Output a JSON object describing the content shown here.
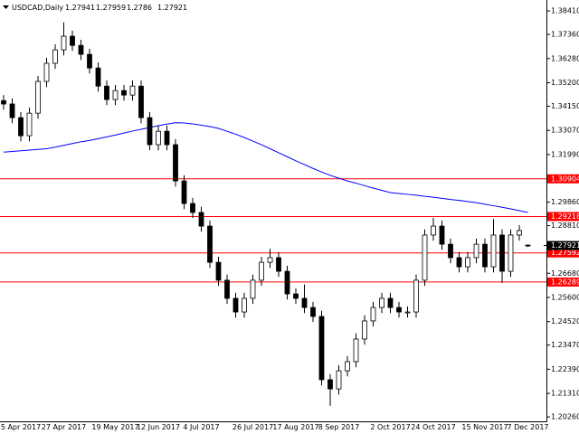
{
  "chart_data": {
    "type": "candlestick",
    "title": "USDCAD,Daily",
    "categories": [
      null,
      null,
      "5 Apr 2017",
      null,
      null,
      null,
      null,
      "27 Apr 2017",
      null,
      null,
      null,
      null,
      null,
      "19 May 2017",
      null,
      null,
      null,
      null,
      "12 Jun 2017",
      null,
      null,
      null,
      null,
      "4 Jul 2017",
      null,
      null,
      null,
      null,
      null,
      "26 Jul 2017",
      null,
      null,
      null,
      null,
      "17 Aug 2017",
      null,
      null,
      null,
      null,
      "8 Sep 2017",
      null,
      null,
      null,
      null,
      null,
      "2 Oct 2017",
      null,
      null,
      null,
      null,
      "24 Oct 2017",
      null,
      null,
      null,
      null,
      null,
      "15 Nov 2017",
      null,
      null,
      null,
      null,
      "7 Dec 2017"
    ],
    "open": [
      1.344,
      1.3425,
      1.3364,
      1.3283,
      1.3384,
      1.3526,
      1.3607,
      1.3667,
      1.3728,
      1.3687,
      1.3647,
      1.3586,
      1.3505,
      1.3445,
      1.3485,
      1.3465,
      1.3505,
      1.3364,
      1.3243,
      1.3303,
      1.3243,
      1.3081,
      1.298,
      1.294,
      1.2879,
      1.2717,
      1.2637,
      1.2556,
      1.2495,
      1.2556,
      1.2637,
      1.2717,
      1.2738,
      1.2677,
      1.2576,
      1.2556,
      1.2515,
      1.2475,
      1.2192,
      1.2151,
      1.2232,
      1.2273,
      1.2374,
      1.2455,
      1.2515,
      1.2556,
      1.2515,
      1.2495,
      1.2495,
      1.2637,
      1.2839,
      1.2879,
      1.2798,
      1.2738,
      1.2697,
      1.2738,
      1.2798,
      1.2697,
      1.2839,
      1.2677,
      1.2839,
      1.27941
    ],
    "high": [
      1.3465,
      1.345,
      1.3389,
      1.3409,
      1.3551,
      1.3632,
      1.3692,
      1.379,
      1.3753,
      1.3712,
      1.3672,
      1.3611,
      1.353,
      1.351,
      1.351,
      1.353,
      1.353,
      1.3389,
      1.3328,
      1.3328,
      1.3268,
      1.3106,
      1.3005,
      1.2965,
      1.2904,
      1.2742,
      1.2662,
      1.2581,
      1.2581,
      1.2662,
      1.2742,
      1.2777,
      1.2763,
      1.2702,
      1.2601,
      1.2618,
      1.254,
      1.25,
      1.2217,
      1.2257,
      1.2298,
      1.2399,
      1.248,
      1.254,
      1.2581,
      1.2581,
      1.254,
      1.252,
      1.2662,
      1.2864,
      1.2916,
      1.2904,
      1.2823,
      1.2763,
      1.2763,
      1.2823,
      1.2823,
      1.291,
      1.2864,
      1.2864,
      1.2884,
      1.27959
    ],
    "low": [
      1.34,
      1.3339,
      1.3258,
      1.3258,
      1.3359,
      1.3501,
      1.3582,
      1.3642,
      1.3662,
      1.3622,
      1.3561,
      1.348,
      1.342,
      1.342,
      1.344,
      1.344,
      1.3339,
      1.3218,
      1.3218,
      1.3218,
      1.3056,
      1.2955,
      1.2915,
      1.2854,
      1.2692,
      1.2612,
      1.2531,
      1.247,
      1.247,
      1.2531,
      1.2612,
      1.2692,
      1.2652,
      1.2551,
      1.2531,
      1.249,
      1.245,
      1.2167,
      1.2075,
      1.2126,
      1.2207,
      1.2248,
      1.2349,
      1.243,
      1.249,
      1.249,
      1.247,
      1.247,
      1.247,
      1.2612,
      1.2814,
      1.2773,
      1.2713,
      1.2672,
      1.2672,
      1.2713,
      1.2672,
      1.2672,
      1.2625,
      1.2652,
      1.2814,
      1.2786
    ],
    "close": [
      1.3425,
      1.3364,
      1.3283,
      1.3384,
      1.3526,
      1.3607,
      1.3667,
      1.3728,
      1.3687,
      1.3647,
      1.3586,
      1.3505,
      1.3445,
      1.3485,
      1.3465,
      1.3505,
      1.3364,
      1.3243,
      1.3303,
      1.3243,
      1.3081,
      1.298,
      1.294,
      1.2879,
      1.2717,
      1.2637,
      1.2556,
      1.2495,
      1.2556,
      1.2637,
      1.2717,
      1.2738,
      1.2677,
      1.2576,
      1.2556,
      1.2515,
      1.2475,
      1.2192,
      1.2151,
      1.2232,
      1.2273,
      1.2374,
      1.2455,
      1.2515,
      1.2556,
      1.2515,
      1.2495,
      1.2495,
      1.2637,
      1.2839,
      1.2879,
      1.2798,
      1.2738,
      1.2697,
      1.2738,
      1.2798,
      1.2697,
      1.2839,
      1.2677,
      1.2839,
      1.2859,
      1.27921
    ],
    "color_up": "#ffffff",
    "color_down": "#000000",
    "moving_average": {
      "color": "#0000ff",
      "values": [
        1.321,
        1.3213,
        1.3216,
        1.3219,
        1.3222,
        1.3225,
        1.3232,
        1.324,
        1.3248,
        1.3256,
        1.3262,
        1.327,
        1.3278,
        1.3286,
        1.3295,
        1.3304,
        1.3312,
        1.332,
        1.3328,
        1.3335,
        1.3341,
        1.334,
        1.3336,
        1.333,
        1.3324,
        1.3316,
        1.3303,
        1.329,
        1.3275,
        1.3259,
        1.3243,
        1.3225,
        1.3207,
        1.3189,
        1.3171,
        1.3154,
        1.3137,
        1.3121,
        1.3106,
        1.3093,
        1.3081,
        1.3071,
        1.306,
        1.3049,
        1.3039,
        1.3029,
        1.3025,
        1.3021,
        1.3017,
        1.3012,
        1.3008,
        1.3003,
        1.2998,
        1.2994,
        1.2989,
        1.2984,
        1.2977,
        1.297,
        1.2963,
        1.2956,
        1.2948,
        1.294
      ]
    },
    "levels": [
      {
        "value": 1.30904,
        "color": "#ff0000"
      },
      {
        "value": 1.29218,
        "color": "#ff0000"
      },
      {
        "value": 1.27592,
        "color": "#ff0000"
      },
      {
        "value": 1.26289,
        "color": "#ff0000"
      }
    ],
    "current_price_color": "#000000",
    "ylim": [
      1.2006,
      1.389
    ],
    "yticks": [
      {
        "value": 1.3841,
        "label": "1.38410"
      },
      {
        "value": 1.3736,
        "label": "1.37360"
      },
      {
        "value": 1.3628,
        "label": "1.36280"
      },
      {
        "value": 1.352,
        "label": "1.35200"
      },
      {
        "value": 1.3415,
        "label": "1.34150"
      },
      {
        "value": 1.3307,
        "label": "1.33070"
      },
      {
        "value": 1.3199,
        "label": "1.31990"
      },
      {
        "value": 1.2986,
        "label": "1.29860"
      },
      {
        "value": 1.2881,
        "label": "1.28810"
      },
      {
        "value": 1.2668,
        "label": "1.26680"
      },
      {
        "value": 1.256,
        "label": "1.25600"
      },
      {
        "value": 1.2452,
        "label": "1.24520"
      },
      {
        "value": 1.2347,
        "label": "1.23470"
      },
      {
        "value": 1.2239,
        "label": "1.22390"
      },
      {
        "value": 1.2131,
        "label": "1.21310"
      },
      {
        "value": 1.2026,
        "label": "1.20260"
      }
    ]
  }
}
